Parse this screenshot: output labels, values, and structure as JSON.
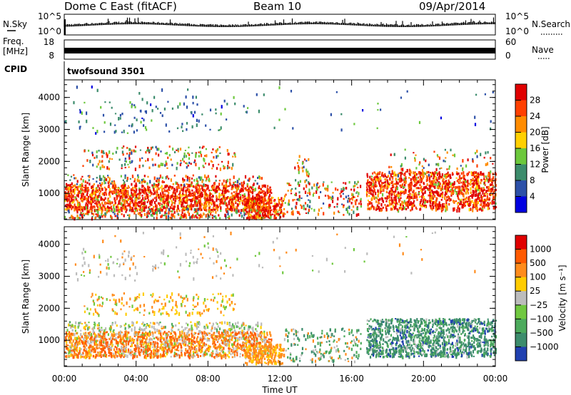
{
  "header": {
    "station": "Dome C East (fitACF)",
    "beam": "Beam 10",
    "date": "09/Apr/2014"
  },
  "top_panels": {
    "nsky": {
      "label": "N.Sky",
      "ticks": [
        "10^5",
        "10^0"
      ]
    },
    "nsearch": {
      "label": "N.Search",
      "ticks": [
        "10^5",
        "10^0"
      ]
    },
    "freq": {
      "label_line1": "Freq.",
      "label_line2": "[MHz]",
      "ticks": [
        "18",
        "8"
      ]
    },
    "nave": {
      "label": "Nave",
      "ticks": [
        "60",
        "0"
      ]
    },
    "cpid": {
      "label": "CPID",
      "value": "twofsound 3501"
    }
  },
  "chart_data": [
    {
      "type": "heatmap",
      "name": "power",
      "ylabel": "Slant Range [km]",
      "ylim": [
        180,
        4550
      ],
      "yticks": [
        1000,
        2000,
        3000,
        4000
      ],
      "xlim": [
        0,
        24
      ],
      "colorbar": {
        "label": "Power [dB]",
        "ticks": [
          "28",
          "24",
          "20",
          "16",
          "12",
          "8",
          "4"
        ],
        "colors": [
          "#0000e0",
          "#2c50a8",
          "#3c8c6c",
          "#6cc83c",
          "#ffd000",
          "#ff8c00",
          "#ff4000",
          "#e00000"
        ]
      }
    },
    {
      "type": "heatmap",
      "name": "velocity",
      "ylabel": "Slant Range [km]",
      "ylim": [
        180,
        4550
      ],
      "yticks": [
        1000,
        2000,
        3000,
        4000
      ],
      "xlim": [
        0,
        24
      ],
      "colorbar": {
        "label": "Velocity [m s⁻¹]",
        "ticks": [
          "1000",
          "500",
          "100",
          "25",
          "−25",
          "−100",
          "−500",
          "−1000"
        ],
        "colors": [
          "#2040b0",
          "#3c8c6c",
          "#4caa5c",
          "#70c840",
          "#bcbcbc",
          "#ffcc00",
          "#ff8c1c",
          "#ff5a00",
          "#e00000"
        ]
      }
    }
  ],
  "x_axis": {
    "label": "Time UT",
    "ticks": [
      "00:00",
      "04:00",
      "08:00",
      "12:00",
      "16:00",
      "20:00",
      "00:00"
    ]
  }
}
